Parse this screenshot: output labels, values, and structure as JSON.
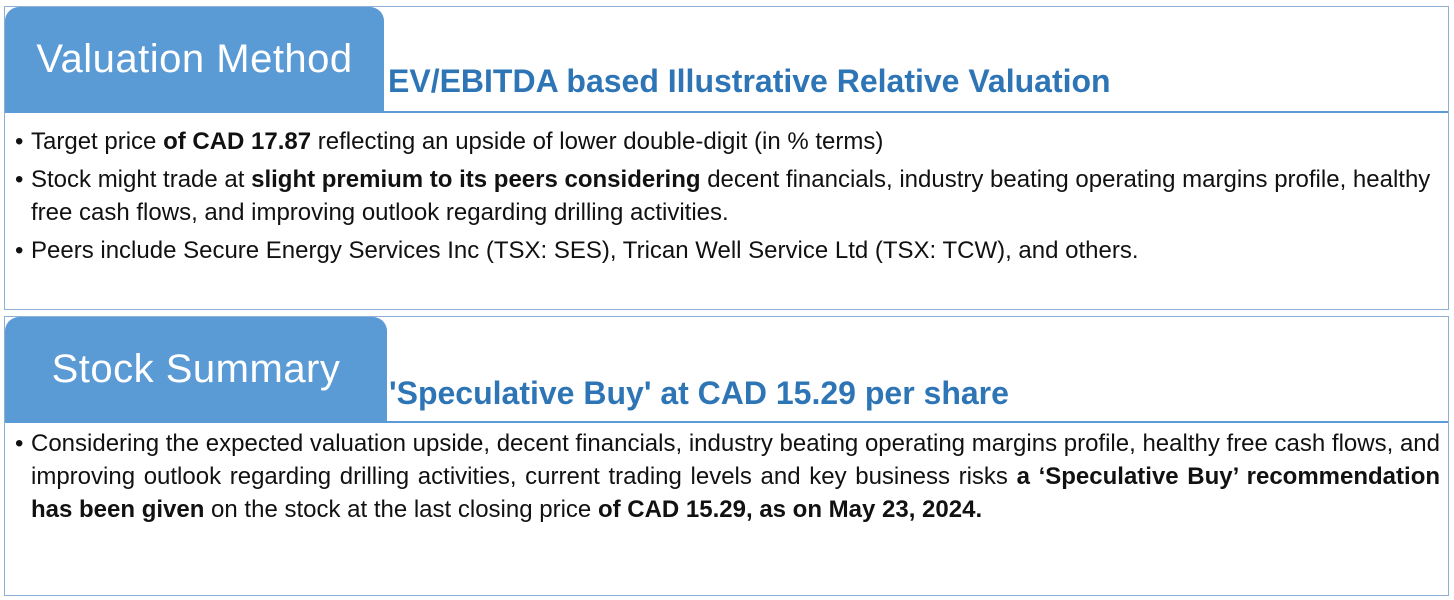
{
  "valuation": {
    "tab_label": "Valuation Method",
    "heading": "EV/EBITDA based Illustrative Relative Valuation",
    "bullets": [
      {
        "parts": [
          {
            "t": "Target price ",
            "b": false
          },
          {
            "t": "of CAD 17.87",
            "b": true
          },
          {
            "t": " reflecting an upside of lower double-digit (in % terms)",
            "b": false
          }
        ]
      },
      {
        "parts": [
          {
            "t": "Stock might trade at ",
            "b": false
          },
          {
            "t": "slight premium to its peers considering",
            "b": true
          },
          {
            "t": " decent financials, industry beating operating margins profile, healthy free cash flows, and improving outlook regarding drilling activities.",
            "b": false
          }
        ]
      },
      {
        "parts": [
          {
            "t": "Peers include Secure Energy Services Inc (TSX: SES), Trican Well Service Ltd (TSX: TCW), and others.",
            "b": false
          }
        ]
      }
    ]
  },
  "summary": {
    "tab_label": "Stock Summary",
    "heading": "'Speculative Buy' at CAD 15.29 per share",
    "bullets": [
      {
        "parts": [
          {
            "t": "Considering the expected valuation upside, decent financials, industry beating operating margins profile, healthy free cash flows, and improving outlook regarding drilling activities, current trading levels and key business risks ",
            "b": false
          },
          {
            "t": "a ‘Speculative Buy’ recommendation has been given",
            "b": true
          },
          {
            "t": " on the stock at the last closing price ",
            "b": false
          },
          {
            "t": "of CAD 15.29, as on May 23, 2024.",
            "b": true
          }
        ]
      }
    ]
  },
  "bullet_char": "•",
  "colors": {
    "tab_bg": "#5b9bd5",
    "heading": "#2e75b6",
    "border": "#8fb0d6"
  }
}
